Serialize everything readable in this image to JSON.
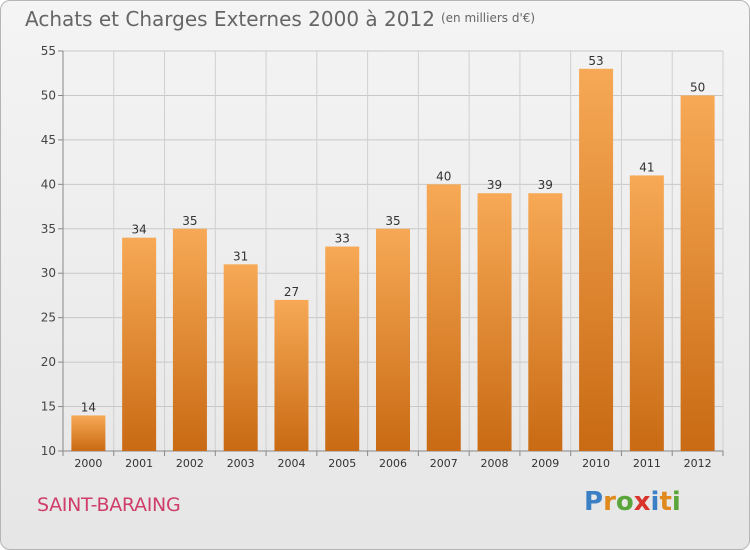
{
  "title": "Achats et Charges Externes 2000 à 2012",
  "unit": "(en milliers d'€)",
  "commune": "SAINT-BARAING",
  "logo": {
    "letters": [
      "P",
      "r",
      "o",
      "x",
      "i",
      "t",
      "i"
    ],
    "colors": [
      "#3b7fc4",
      "#e08a1e",
      "#5aa63a",
      "#d9342b",
      "#3b7fc4",
      "#e08a1e",
      "#5aa63a"
    ]
  },
  "colors": {
    "bar_top": "#f7a955",
    "bar_bottom": "#c96a14",
    "title": "#666666",
    "commune": "#cf3d6a"
  },
  "chart_data": {
    "type": "bar",
    "title": "Achats et Charges Externes 2000 à 2012",
    "categories": [
      "2000",
      "2001",
      "2002",
      "2003",
      "2004",
      "2005",
      "2006",
      "2007",
      "2008",
      "2009",
      "2010",
      "2011",
      "2012"
    ],
    "values": [
      14,
      34,
      35,
      31,
      27,
      33,
      35,
      40,
      39,
      39,
      53,
      41,
      50
    ],
    "ylim": [
      10,
      55
    ],
    "yticks": [
      10,
      15,
      20,
      25,
      30,
      35,
      40,
      45,
      50,
      55
    ],
    "grid": true,
    "xlabel": "",
    "ylabel": ""
  }
}
